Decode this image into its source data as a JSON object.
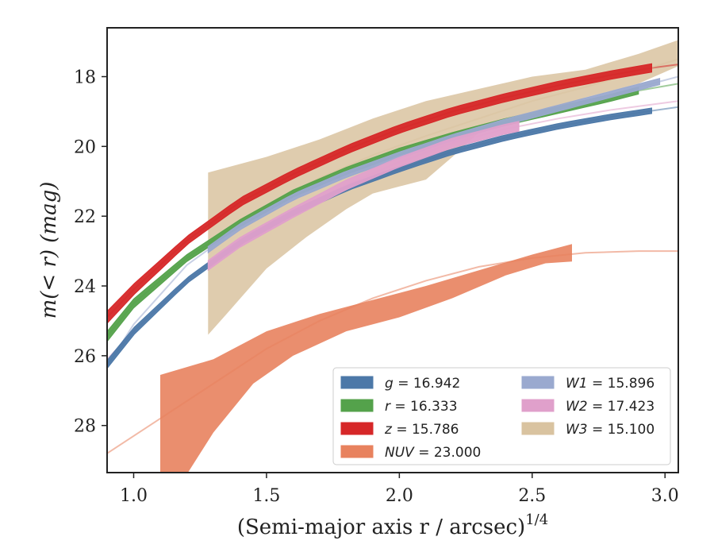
{
  "chart_data": {
    "type": "line",
    "xlabel": "(Semi-major axis r / arcsec)",
    "xlabel_superscript": "1/4",
    "ylabel": "m(< r) (mag)",
    "xlim": [
      0.9,
      3.05
    ],
    "ylim": [
      29.35,
      16.6
    ],
    "y_inverted": true,
    "x_ticks": [
      1.0,
      1.5,
      2.0,
      2.5,
      3.0
    ],
    "x_tick_labels": [
      "1.0",
      "1.5",
      "2.0",
      "2.5",
      "3.0"
    ],
    "y_ticks": [
      18,
      20,
      22,
      24,
      26,
      28
    ],
    "y_tick_labels": [
      "18",
      "20",
      "22",
      "24",
      "26",
      "28"
    ],
    "grid": false,
    "legend_position": "lower-right",
    "legend_columns": 2,
    "series": [
      {
        "name": "g = 16.942",
        "legend_var": "g",
        "legend_val": "16.942",
        "color": "#4c78a8",
        "model": [
          [
            0.9,
            26.25
          ],
          [
            1.0,
            25.3
          ],
          [
            1.2,
            23.85
          ],
          [
            1.4,
            22.75
          ],
          [
            1.6,
            21.9
          ],
          [
            1.8,
            21.2
          ],
          [
            2.0,
            20.65
          ],
          [
            2.2,
            20.15
          ],
          [
            2.4,
            19.75
          ],
          [
            2.6,
            19.42
          ],
          [
            2.8,
            19.15
          ],
          [
            2.95,
            18.98
          ],
          [
            3.05,
            18.87
          ]
        ],
        "profile_x": [
          0.9,
          2.95
        ],
        "band_halfwidth": 0.08
      },
      {
        "name": "r = 16.333",
        "legend_var": "r",
        "legend_val": "16.333",
        "color": "#54a24b",
        "model": [
          [
            0.9,
            25.45
          ],
          [
            1.0,
            24.5
          ],
          [
            1.2,
            23.2
          ],
          [
            1.4,
            22.2
          ],
          [
            1.6,
            21.35
          ],
          [
            1.8,
            20.7
          ],
          [
            2.0,
            20.15
          ],
          [
            2.2,
            19.7
          ],
          [
            2.4,
            19.3
          ],
          [
            2.6,
            18.95
          ],
          [
            2.8,
            18.6
          ],
          [
            2.9,
            18.4
          ],
          [
            3.05,
            18.2
          ]
        ],
        "profile_x": [
          0.9,
          2.9
        ],
        "band_halfwidth": 0.1
      },
      {
        "name": "z = 15.786",
        "legend_var": "z",
        "legend_val": "15.786",
        "color": "#d62728",
        "model": [
          [
            0.9,
            24.9
          ],
          [
            1.0,
            24.1
          ],
          [
            1.2,
            22.7
          ],
          [
            1.4,
            21.6
          ],
          [
            1.6,
            20.8
          ],
          [
            1.8,
            20.1
          ],
          [
            2.0,
            19.5
          ],
          [
            2.2,
            19.0
          ],
          [
            2.4,
            18.6
          ],
          [
            2.6,
            18.25
          ],
          [
            2.8,
            17.95
          ],
          [
            2.95,
            17.75
          ],
          [
            3.05,
            17.65
          ]
        ],
        "profile_x": [
          0.9,
          2.95
        ],
        "band_halfwidth": 0.12
      },
      {
        "name": "NUV = 23.000",
        "legend_var": "NUV",
        "legend_val": "23.000",
        "color": "#e8825e",
        "model": [
          [
            0.9,
            28.8
          ],
          [
            1.1,
            27.8
          ],
          [
            1.3,
            26.8
          ],
          [
            1.5,
            25.8
          ],
          [
            1.7,
            25.0
          ],
          [
            1.9,
            24.35
          ],
          [
            2.1,
            23.85
          ],
          [
            2.3,
            23.45
          ],
          [
            2.5,
            23.2
          ],
          [
            2.7,
            23.05
          ],
          [
            2.9,
            23.0
          ],
          [
            3.05,
            23.0
          ]
        ],
        "band_upper": [
          [
            1.1,
            26.55
          ],
          [
            1.3,
            26.1
          ],
          [
            1.5,
            25.3
          ],
          [
            1.7,
            24.8
          ],
          [
            1.9,
            24.4
          ],
          [
            2.1,
            24.0
          ],
          [
            2.3,
            23.55
          ],
          [
            2.5,
            23.1
          ],
          [
            2.65,
            22.8
          ]
        ],
        "band_lower": [
          [
            1.1,
            29.5
          ],
          [
            1.2,
            29.4
          ],
          [
            1.3,
            28.2
          ],
          [
            1.45,
            26.8
          ],
          [
            1.6,
            26.0
          ],
          [
            1.8,
            25.3
          ],
          [
            2.0,
            24.9
          ],
          [
            2.2,
            24.35
          ],
          [
            2.4,
            23.7
          ],
          [
            2.55,
            23.35
          ],
          [
            2.65,
            23.3
          ]
        ]
      },
      {
        "name": "W1 = 15.896",
        "legend_var": "W1",
        "legend_val": "15.896",
        "color": "#9aa9cf",
        "model": [
          [
            0.9,
            26.3
          ],
          [
            1.0,
            25.1
          ],
          [
            1.2,
            23.4
          ],
          [
            1.4,
            22.3
          ],
          [
            1.6,
            21.45
          ],
          [
            1.8,
            20.8
          ],
          [
            2.0,
            20.25
          ],
          [
            2.2,
            19.75
          ],
          [
            2.4,
            19.3
          ],
          [
            2.6,
            18.9
          ],
          [
            2.8,
            18.5
          ],
          [
            3.0,
            18.1
          ],
          [
            3.05,
            18.0
          ]
        ],
        "profile_x": [
          1.28,
          2.98
        ],
        "band_halfwidth": 0.09
      },
      {
        "name": "W2 = 17.423",
        "legend_var": "W2",
        "legend_val": "17.423",
        "color": "#e0a0cb",
        "model": [
          [
            0.9,
            26.1
          ],
          [
            1.0,
            25.3
          ],
          [
            1.2,
            23.85
          ],
          [
            1.4,
            22.75
          ],
          [
            1.6,
            21.9
          ],
          [
            1.8,
            21.1
          ],
          [
            2.0,
            20.45
          ],
          [
            2.2,
            19.9
          ],
          [
            2.4,
            19.5
          ],
          [
            2.6,
            19.2
          ],
          [
            2.8,
            18.95
          ],
          [
            3.05,
            18.7
          ]
        ],
        "profile_x": [
          1.28,
          2.45
        ],
        "band_halfwidth": 0.14
      },
      {
        "name": "W3 = 15.100",
        "legend_var": "W3",
        "legend_val": "15.100",
        "color": "#d9c3a0",
        "model": [
          [
            1.28,
            22.8
          ],
          [
            1.5,
            21.7
          ],
          [
            1.7,
            20.9
          ],
          [
            1.9,
            20.25
          ],
          [
            2.1,
            19.7
          ],
          [
            2.3,
            19.2
          ],
          [
            2.5,
            18.7
          ],
          [
            2.7,
            18.3
          ],
          [
            2.9,
            17.85
          ],
          [
            3.05,
            17.5
          ]
        ],
        "band_upper": [
          [
            1.28,
            20.75
          ],
          [
            1.5,
            20.3
          ],
          [
            1.7,
            19.8
          ],
          [
            1.9,
            19.2
          ],
          [
            2.1,
            18.7
          ],
          [
            2.3,
            18.35
          ],
          [
            2.5,
            18.0
          ],
          [
            2.7,
            17.8
          ],
          [
            2.9,
            17.35
          ],
          [
            3.05,
            16.95
          ]
        ],
        "band_lower": [
          [
            1.28,
            25.4
          ],
          [
            1.35,
            24.8
          ],
          [
            1.5,
            23.5
          ],
          [
            1.65,
            22.6
          ],
          [
            1.8,
            21.8
          ],
          [
            1.9,
            21.35
          ],
          [
            2.0,
            21.15
          ],
          [
            2.1,
            20.95
          ],
          [
            2.2,
            20.3
          ],
          [
            2.3,
            19.6
          ],
          [
            2.5,
            19.2
          ],
          [
            2.7,
            18.6
          ],
          [
            2.9,
            18.2
          ],
          [
            3.05,
            17.7
          ]
        ]
      }
    ]
  }
}
